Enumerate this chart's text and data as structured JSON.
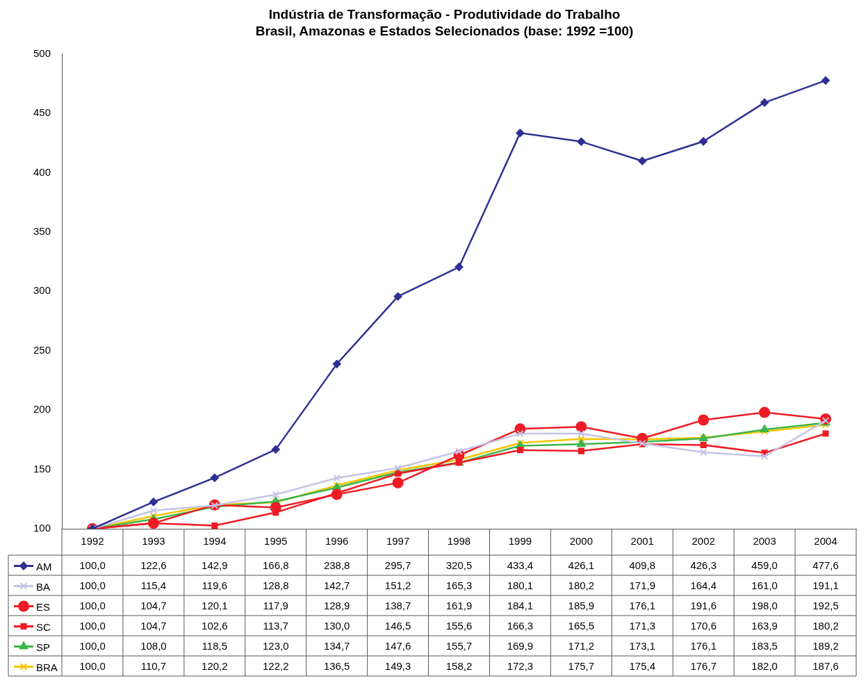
{
  "chart_data": {
    "type": "line",
    "title": "Indústria de Transformação - Produtividade do Trabalho",
    "subtitle": "Brasil, Amazonas e Estados Selecionados (base: 1992 =100)",
    "categories": [
      "1992",
      "1993",
      "1994",
      "1995",
      "1996",
      "1997",
      "1998",
      "1999",
      "2000",
      "2001",
      "2002",
      "2003",
      "2004"
    ],
    "ylim": [
      100,
      500
    ],
    "yticks": [
      100,
      150,
      200,
      250,
      300,
      350,
      400,
      450,
      500
    ],
    "grid": false,
    "legend": "bottom",
    "line_style": "solid",
    "series": [
      {
        "name": "AM",
        "color": "#2e3192",
        "marker": "diamond",
        "values": [
          100.0,
          122.6,
          142.9,
          166.8,
          238.8,
          295.7,
          320.5,
          433.4,
          426.1,
          409.8,
          426.3,
          459.0,
          477.6
        ],
        "value_labels": [
          "100,0",
          "122,6",
          "142,9",
          "166,8",
          "238,8",
          "295,7",
          "320,5",
          "433,4",
          "426,1",
          "409,8",
          "426,3",
          "459,0",
          "477,6"
        ]
      },
      {
        "name": "BA",
        "color": "#c4c4e6",
        "marker": "cross",
        "values": [
          100.0,
          115.4,
          119.6,
          128.8,
          142.7,
          151.2,
          165.3,
          180.1,
          180.2,
          171.9,
          164.4,
          161.0,
          191.1
        ],
        "value_labels": [
          "100,0",
          "115,4",
          "119,6",
          "128,8",
          "142,7",
          "151,2",
          "165,3",
          "180,1",
          "180,2",
          "171,9",
          "164,4",
          "161,0",
          "191,1"
        ]
      },
      {
        "name": "ES",
        "color": "#ee1c24",
        "marker": "circle",
        "values": [
          100.0,
          104.7,
          120.1,
          117.9,
          128.9,
          138.7,
          161.9,
          184.1,
          185.9,
          176.1,
          191.6,
          198.0,
          192.5
        ],
        "value_labels": [
          "100,0",
          "104,7",
          "120,1",
          "117,9",
          "128,9",
          "138,7",
          "161,9",
          "184,1",
          "185,9",
          "176,1",
          "191,6",
          "198,0",
          "192,5"
        ]
      },
      {
        "name": "SC",
        "color": "#ee1c24",
        "marker": "square",
        "values": [
          100.0,
          104.7,
          102.6,
          113.7,
          130.0,
          146.5,
          155.6,
          166.3,
          165.5,
          171.3,
          170.6,
          163.9,
          180.2
        ],
        "value_labels": [
          "100,0",
          "104,7",
          "102,6",
          "113,7",
          "130,0",
          "146,5",
          "155,6",
          "166,3",
          "165,5",
          "171,3",
          "170,6",
          "163,9",
          "180,2"
        ]
      },
      {
        "name": "SP",
        "color": "#3cb54a",
        "marker": "triangle",
        "values": [
          100.0,
          108.0,
          118.5,
          123.0,
          134.7,
          147.6,
          155.7,
          169.9,
          171.2,
          173.1,
          176.1,
          183.5,
          189.2
        ],
        "value_labels": [
          "100,0",
          "108,0",
          "118,5",
          "123,0",
          "134,7",
          "147,6",
          "155,7",
          "169,9",
          "171,2",
          "173,1",
          "176,1",
          "183,5",
          "189,2"
        ]
      },
      {
        "name": "BRA",
        "color": "#f5c400",
        "marker": "cross",
        "values": [
          100.0,
          110.7,
          120.2,
          122.2,
          136.5,
          149.3,
          158.2,
          172.3,
          175.7,
          175.4,
          176.7,
          182.0,
          187.6
        ],
        "value_labels": [
          "100,0",
          "110,7",
          "120,2",
          "122,2",
          "136,5",
          "149,3",
          "158,2",
          "172,3",
          "175,7",
          "175,4",
          "176,7",
          "182,0",
          "187,6"
        ]
      }
    ]
  }
}
